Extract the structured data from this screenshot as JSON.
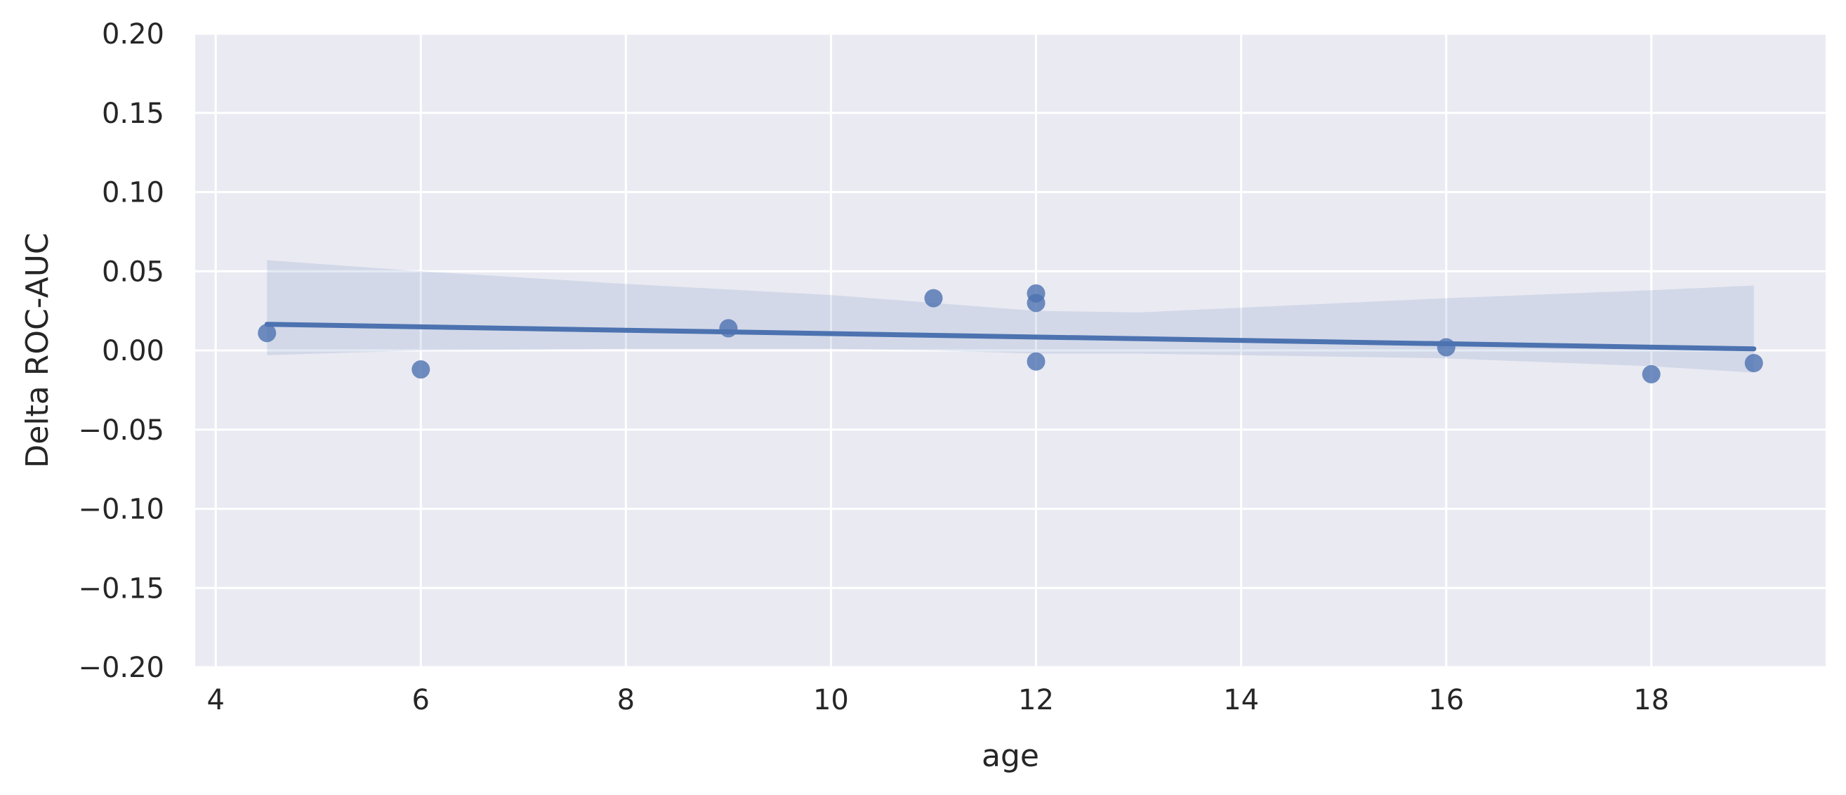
{
  "chart_data": {
    "type": "scatter",
    "xlabel": "age",
    "ylabel": "Delta ROC-AUC",
    "xlim": [
      3.8,
      19.7
    ],
    "ylim": [
      -0.2,
      0.2
    ],
    "x_ticks": [
      4,
      6,
      8,
      10,
      12,
      14,
      16,
      18
    ],
    "y_ticks": [
      -0.2,
      -0.15,
      -0.1,
      -0.05,
      0.0,
      0.05,
      0.1,
      0.15,
      0.2
    ],
    "x_tick_labels": [
      "4",
      "6",
      "8",
      "10",
      "12",
      "14",
      "16",
      "18"
    ],
    "y_tick_labels": [
      "−0.20",
      "−0.15",
      "−0.10",
      "−0.05",
      "0.00",
      "0.05",
      "0.10",
      "0.15",
      "0.20"
    ],
    "grid": true,
    "colors": {
      "series": "#4c72b0",
      "background": "#eaeaf2",
      "grid": "#ffffff",
      "text": "#262626"
    },
    "series": [
      {
        "points": [
          {
            "x": 4.5,
            "y": 0.011
          },
          {
            "x": 6,
            "y": -0.012
          },
          {
            "x": 9,
            "y": 0.014
          },
          {
            "x": 11,
            "y": 0.033
          },
          {
            "x": 12,
            "y": 0.036
          },
          {
            "x": 12,
            "y": 0.03
          },
          {
            "x": 12,
            "y": -0.007
          },
          {
            "x": 16,
            "y": 0.002
          },
          {
            "x": 18,
            "y": -0.015
          },
          {
            "x": 19,
            "y": -0.008
          }
        ],
        "regression_line": {
          "x": [
            4.5,
            19
          ],
          "y": [
            0.0165,
            0.001
          ]
        },
        "confidence_band": {
          "x": [
            4.5,
            6,
            8,
            10,
            11,
            12,
            13,
            14,
            16,
            18,
            19
          ],
          "upper": [
            0.057,
            0.05,
            0.042,
            0.035,
            0.03,
            0.025,
            0.024,
            0.027,
            0.033,
            0.038,
            0.041
          ],
          "lower": [
            -0.003,
            0.0,
            0.001,
            0.001,
            0.0,
            -0.002,
            -0.002,
            -0.003,
            -0.005,
            -0.01,
            -0.014
          ]
        }
      }
    ]
  }
}
